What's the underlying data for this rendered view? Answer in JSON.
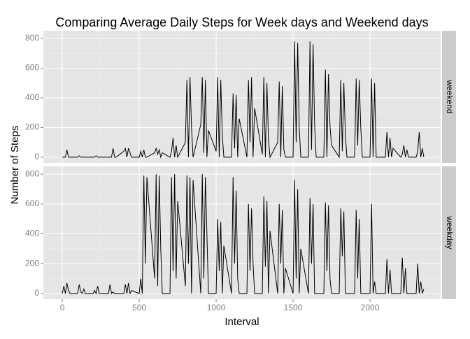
{
  "chart_data": {
    "type": "line",
    "title": "Comparing Average Daily Steps for Week days and Weekend days",
    "xlabel": "Interval",
    "ylabel": "Number of Steps",
    "x": [
      0,
      10,
      20,
      30,
      40,
      50,
      100,
      110,
      120,
      130,
      140,
      150,
      200,
      210,
      220,
      230,
      240,
      250,
      300,
      310,
      320,
      330,
      340,
      350,
      400,
      410,
      420,
      430,
      440,
      450,
      500,
      510,
      520,
      530,
      540,
      550,
      600,
      610,
      620,
      630,
      640,
      650,
      700,
      710,
      720,
      730,
      740,
      750,
      800,
      810,
      820,
      830,
      840,
      850,
      900,
      910,
      920,
      930,
      940,
      950,
      1000,
      1010,
      1020,
      1030,
      1040,
      1050,
      1100,
      1110,
      1120,
      1130,
      1140,
      1150,
      1200,
      1210,
      1220,
      1230,
      1240,
      1250,
      1300,
      1310,
      1320,
      1330,
      1340,
      1350,
      1400,
      1410,
      1420,
      1430,
      1440,
      1450,
      1500,
      1510,
      1520,
      1530,
      1540,
      1550,
      1600,
      1610,
      1620,
      1630,
      1640,
      1650,
      1700,
      1710,
      1720,
      1730,
      1740,
      1750,
      1800,
      1810,
      1820,
      1830,
      1840,
      1850,
      1900,
      1910,
      1920,
      1930,
      1940,
      1950,
      2000,
      2010,
      2020,
      2030,
      2040,
      2050,
      2100,
      2110,
      2120,
      2130,
      2140,
      2150,
      2200,
      2210,
      2220,
      2230,
      2240,
      2250,
      2300,
      2310,
      2320,
      2330,
      2340,
      2350
    ],
    "series": [
      {
        "name": "weekend",
        "color": "#000000",
        "values": [
          0,
          0,
          0,
          50,
          0,
          0,
          0,
          10,
          0,
          0,
          0,
          0,
          0,
          0,
          10,
          0,
          0,
          0,
          0,
          0,
          0,
          60,
          0,
          0,
          40,
          60,
          0,
          60,
          30,
          0,
          0,
          40,
          0,
          50,
          0,
          0,
          30,
          60,
          20,
          50,
          0,
          30,
          0,
          40,
          130,
          0,
          80,
          0,
          100,
          520,
          0,
          540,
          200,
          0,
          220,
          540,
          30,
          520,
          0,
          180,
          40,
          540,
          0,
          520,
          150,
          0,
          0,
          430,
          60,
          420,
          0,
          260,
          0,
          520,
          100,
          540,
          0,
          330,
          20,
          540,
          0,
          500,
          120,
          0,
          100,
          510,
          0,
          480,
          50,
          0,
          0,
          780,
          100,
          770,
          200,
          0,
          0,
          780,
          50,
          760,
          220,
          0,
          0,
          590,
          0,
          560,
          210,
          80,
          0,
          520,
          40,
          500,
          150,
          0,
          0,
          530,
          80,
          520,
          200,
          0,
          0,
          530,
          0,
          500,
          0,
          0,
          0,
          170,
          0,
          130,
          0,
          60,
          0,
          20,
          80,
          0,
          50,
          0,
          0,
          40,
          170,
          0,
          60,
          0
        ]
      },
      {
        "name": "weekday",
        "color": "#000000",
        "values": [
          0,
          50,
          0,
          70,
          20,
          0,
          0,
          60,
          10,
          0,
          30,
          0,
          0,
          20,
          0,
          50,
          0,
          0,
          0,
          60,
          0,
          10,
          0,
          0,
          0,
          60,
          0,
          70,
          0,
          20,
          0,
          100,
          0,
          790,
          200,
          780,
          100,
          800,
          50,
          790,
          300,
          0,
          0,
          780,
          150,
          800,
          100,
          620,
          50,
          790,
          200,
          780,
          0,
          760,
          0,
          800,
          100,
          780,
          400,
          0,
          0,
          500,
          150,
          480,
          0,
          320,
          0,
          780,
          200,
          690,
          100,
          0,
          0,
          600,
          150,
          570,
          200,
          0,
          0,
          650,
          180,
          620,
          0,
          420,
          0,
          600,
          200,
          560,
          0,
          170,
          0,
          760,
          100,
          700,
          0,
          300,
          0,
          640,
          200,
          600,
          0,
          0,
          0,
          610,
          150,
          590,
          100,
          0,
          0,
          570,
          250,
          550,
          0,
          0,
          0,
          560,
          100,
          500,
          0,
          0,
          0,
          600,
          0,
          80,
          0,
          0,
          0,
          230,
          0,
          160,
          0,
          0,
          0,
          240,
          0,
          170,
          0,
          0,
          0,
          200,
          0,
          80,
          0,
          30
        ]
      }
    ],
    "xlim": [
      -123,
      2459
    ],
    "xticks": [
      0,
      500,
      1000,
      1500,
      2000
    ],
    "ylim": [
      -38,
      852
    ],
    "yticks": [
      0,
      200,
      400,
      600,
      800
    ],
    "grid": true
  }
}
